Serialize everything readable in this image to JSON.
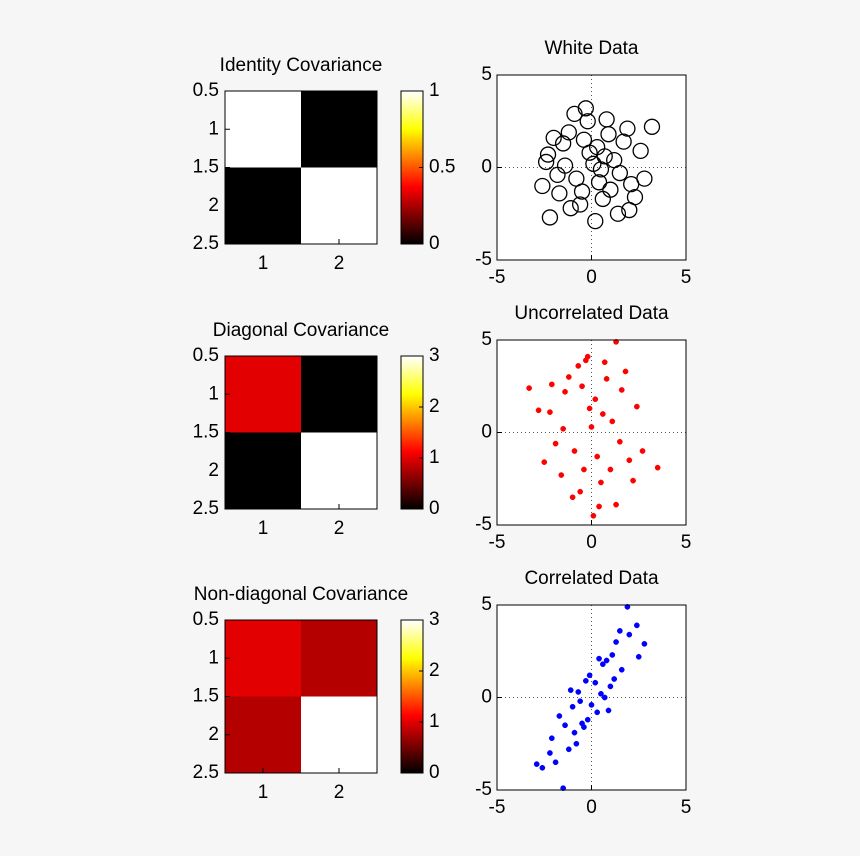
{
  "chart_data": [
    {
      "type": "heatmap",
      "title": "Identity Covariance",
      "values": [
        [
          1,
          0
        ],
        [
          0,
          1
        ]
      ],
      "xlim": [
        0.5,
        2.5
      ],
      "xticks": [
        1,
        2
      ],
      "ylim": [
        0.5,
        2.5
      ],
      "yticks": [
        0.5,
        1,
        1.5,
        2,
        2.5
      ],
      "y_reversed": true,
      "colormap": "hot",
      "clim": [
        0,
        1
      ],
      "cticks": [
        0,
        0.5,
        1
      ]
    },
    {
      "type": "scatter",
      "title": "White Data",
      "marker": "open-circle",
      "color": "#000000",
      "x": [
        0.3,
        -0.8,
        1.2,
        -1.5,
        0.6,
        -0.2,
        2.1,
        -2.3,
        0.9,
        -1.1,
        1.7,
        -0.5,
        0.1,
        -1.8,
        2.6,
        -0.9,
        1.4,
        -2.0,
        0.4,
        -0.3,
        3.2,
        -2.2,
        1.0,
        -1.4,
        2.3,
        0.7,
        -0.6,
        1.9,
        -2.6,
        0.2,
        -1.2,
        2.8,
        -0.1,
        1.5,
        -1.7,
        0.8,
        -0.4,
        2.0,
        -2.4,
        0.5
      ],
      "y": [
        1.1,
        -0.6,
        0.4,
        1.3,
        -1.7,
        2.5,
        -0.9,
        0.7,
        1.8,
        -2.2,
        1.4,
        -1.3,
        0.2,
        -0.4,
        0.9,
        2.9,
        -2.5,
        1.6,
        -0.8,
        3.2,
        2.2,
        -2.7,
        -1.2,
        0.1,
        -1.6,
        0.6,
        -2.0,
        2.1,
        -1.0,
        -2.9,
        1.9,
        -0.6,
        0.8,
        -0.3,
        -1.4,
        2.6,
        1.5,
        -2.3,
        0.3,
        -0.1
      ],
      "xlim": [
        -5,
        5
      ],
      "xticks": [
        -5,
        0,
        5
      ],
      "ylim": [
        -5,
        5
      ],
      "yticks": [
        -5,
        0,
        5
      ],
      "grid": true
    },
    {
      "type": "heatmap",
      "title": "Diagonal Covariance",
      "values": [
        [
          1,
          0
        ],
        [
          0,
          3
        ]
      ],
      "xlim": [
        0.5,
        2.5
      ],
      "xticks": [
        1,
        2
      ],
      "ylim": [
        0.5,
        2.5
      ],
      "yticks": [
        0.5,
        1,
        1.5,
        2,
        2.5
      ],
      "y_reversed": true,
      "colormap": "hot",
      "clim": [
        0,
        3
      ],
      "cticks": [
        0,
        1,
        2,
        3
      ]
    },
    {
      "type": "scatter",
      "title": "Uncorrelated Data",
      "marker": "dot",
      "color": "#ff0000",
      "x": [
        0.2,
        -0.9,
        1.1,
        -1.4,
        0.5,
        -0.3,
        2.0,
        -2.2,
        0.8,
        -1.0,
        1.6,
        -0.4,
        0.0,
        -1.9,
        2.4,
        -0.7,
        1.3,
        -2.1,
        0.3,
        -0.2,
        1.3,
        3.5,
        -3.3,
        -2.8,
        1.0,
        -1.5,
        2.2,
        0.6,
        -0.6,
        1.8,
        -2.5,
        0.1,
        -1.2,
        2.7,
        -0.1,
        1.5,
        -1.6,
        0.7,
        -0.5,
        0.4
      ],
      "y": [
        1.8,
        -1.0,
        0.6,
        2.2,
        -2.7,
        3.9,
        -1.5,
        1.1,
        2.9,
        -3.5,
        2.3,
        -2.0,
        0.3,
        -0.6,
        1.4,
        3.6,
        -3.9,
        2.6,
        -1.3,
        4.1,
        4.9,
        -1.9,
        2.4,
        1.2,
        -2.0,
        0.2,
        -2.6,
        1.0,
        -3.2,
        3.3,
        -1.6,
        -4.5,
        3.0,
        -1.0,
        1.3,
        -0.5,
        -2.3,
        3.8,
        2.5,
        -4.0
      ],
      "xlim": [
        -5,
        5
      ],
      "xticks": [
        -5,
        0,
        5
      ],
      "ylim": [
        -5,
        5
      ],
      "yticks": [
        -5,
        0,
        5
      ],
      "grid": true
    },
    {
      "type": "heatmap",
      "title": "Non-diagonal Covariance",
      "values": [
        [
          1,
          0.8
        ],
        [
          0.8,
          3
        ]
      ],
      "xlim": [
        0.5,
        2.5
      ],
      "xticks": [
        1,
        2
      ],
      "ylim": [
        0.5,
        2.5
      ],
      "yticks": [
        0.5,
        1,
        1.5,
        2,
        2.5
      ],
      "y_reversed": true,
      "colormap": "hot",
      "clim": [
        0,
        3
      ],
      "cticks": [
        0,
        1,
        2,
        3
      ]
    },
    {
      "type": "scatter",
      "title": "Correlated Data",
      "marker": "dot",
      "color": "#0000ff",
      "x": [
        0.2,
        -0.9,
        1.1,
        -1.4,
        0.5,
        -0.3,
        2.0,
        -2.2,
        0.8,
        -1.0,
        1.6,
        -0.4,
        0.0,
        -1.9,
        2.4,
        -0.7,
        1.3,
        -2.1,
        0.3,
        -0.2,
        1.9,
        -1.5,
        -2.6,
        2.8,
        1.0,
        -1.2,
        0.6,
        -0.6,
        1.5,
        -1.7,
        0.9,
        -0.8,
        1.2,
        -0.1,
        0.4,
        -2.9,
        2.5,
        -0.5,
        0.7,
        -1.1
      ],
      "y": [
        0.8,
        -1.9,
        2.3,
        -1.5,
        0.2,
        0.9,
        3.4,
        -3.0,
        2.0,
        -0.5,
        1.5,
        -1.6,
        -0.4,
        -3.5,
        3.9,
        0.3,
        3.0,
        -2.2,
        -0.8,
        -1.2,
        4.9,
        -4.9,
        -3.8,
        2.9,
        0.6,
        -2.8,
        1.8,
        -0.2,
        3.6,
        -1.0,
        -0.7,
        -2.5,
        1.0,
        1.2,
        2.1,
        -3.6,
        2.2,
        -1.4,
        0.0,
        0.4
      ],
      "xlim": [
        -5,
        5
      ],
      "xticks": [
        -5,
        0,
        5
      ],
      "ylim": [
        -5,
        5
      ],
      "yticks": [
        -5,
        0,
        5
      ],
      "grid": true
    }
  ]
}
